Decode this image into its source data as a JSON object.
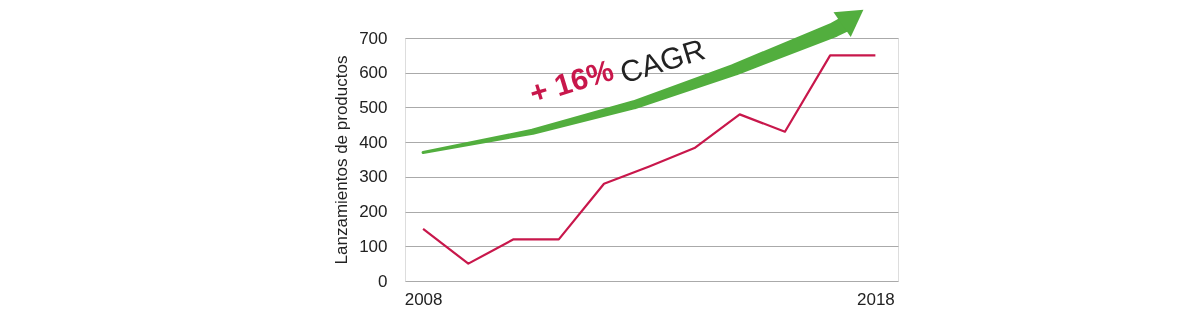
{
  "chart_data": {
    "type": "line",
    "ylabel": "Lanzamientos de productos",
    "x": [
      2008,
      2009,
      2010,
      2011,
      2012,
      2013,
      2014,
      2015,
      2016,
      2017,
      2018
    ],
    "series": [
      {
        "color": "#c8174b",
        "values": [
          150,
          50,
          120,
          120,
          280,
          330,
          383,
          480,
          430,
          650,
          650
        ]
      }
    ],
    "xlim": [
      2007.6,
      2018.5
    ],
    "xticks": [
      2008,
      2018
    ],
    "ylim": [
      0,
      700
    ],
    "yticks": [
      0,
      100,
      200,
      300,
      400,
      500,
      600,
      700
    ],
    "grid": "y",
    "legend": false,
    "marker": "none",
    "line_style": "solid",
    "annotations": [
      "+ 16%",
      "CAGR"
    ]
  }
}
